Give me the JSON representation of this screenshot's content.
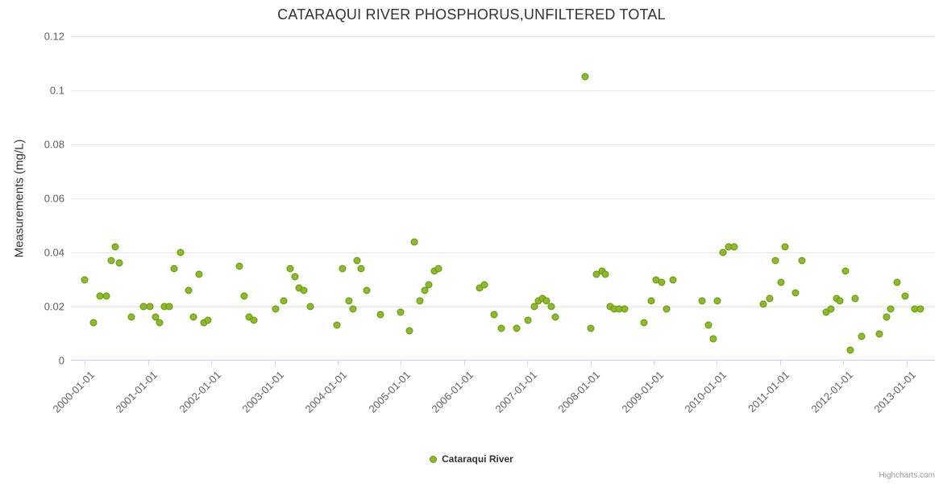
{
  "title": "CATARAQUI RIVER PHOSPHORUS,UNFILTERED TOTAL",
  "legend": {
    "label": "Cataraqui River"
  },
  "credits": {
    "label": "Highcharts.com"
  },
  "colors": {
    "series_fill": "#8bbc21",
    "series_border": "#69901a",
    "grid": "#e6e6e6",
    "axis_line": "#ccd6eb",
    "tick_label": "#606060",
    "title": "#333333"
  },
  "chart_data": {
    "type": "scatter",
    "title": "CATARAQUI RIVER PHOSPHORUS,UNFILTERED TOTAL",
    "xlabel": "",
    "ylabel": "Measurements (mg/L)",
    "ylim": [
      0,
      0.12
    ],
    "yticks": [
      0,
      0.02,
      0.04,
      0.06,
      0.08,
      0.1,
      0.12
    ],
    "ytick_labels": [
      "0",
      "0.02",
      "0.04",
      "0.06",
      "0.08",
      "0.1",
      "0.12"
    ],
    "xlim": [
      1999.78,
      2013.45
    ],
    "xticks": [
      2000,
      2001,
      2002,
      2003,
      2004,
      2005,
      2006,
      2007,
      2008,
      2009,
      2010,
      2011,
      2012,
      2013
    ],
    "xtick_labels": [
      "2000-01-01",
      "2001-01-01",
      "2002-01-01",
      "2003-01-01",
      "2004-01-01",
      "2005-01-01",
      "2006-01-01",
      "2007-01-01",
      "2008-01-01",
      "2009-01-01",
      "2010-01-01",
      "2011-01-01",
      "2012-01-01",
      "2013-01-01"
    ],
    "grid": "horizontal",
    "legend_position": "bottom-center",
    "series": [
      {
        "name": "Cataraqui River",
        "points": [
          [
            2000.0,
            0.03
          ],
          [
            2000.14,
            0.014
          ],
          [
            2000.24,
            0.024
          ],
          [
            2000.34,
            0.024
          ],
          [
            2000.42,
            0.037
          ],
          [
            2000.48,
            0.042
          ],
          [
            2000.55,
            0.036
          ],
          [
            2000.74,
            0.016
          ],
          [
            2000.93,
            0.02
          ],
          [
            2001.03,
            0.02
          ],
          [
            2001.12,
            0.016
          ],
          [
            2001.18,
            0.014
          ],
          [
            2001.26,
            0.02
          ],
          [
            2001.34,
            0.02
          ],
          [
            2001.41,
            0.034
          ],
          [
            2001.52,
            0.04
          ],
          [
            2001.64,
            0.026
          ],
          [
            2001.72,
            0.016
          ],
          [
            2001.81,
            0.032
          ],
          [
            2001.89,
            0.014
          ],
          [
            2001.95,
            0.015
          ],
          [
            2002.45,
            0.035
          ],
          [
            2002.52,
            0.024
          ],
          [
            2002.6,
            0.016
          ],
          [
            2002.68,
            0.015
          ],
          [
            2003.02,
            0.019
          ],
          [
            2003.15,
            0.022
          ],
          [
            2003.25,
            0.034
          ],
          [
            2003.32,
            0.031
          ],
          [
            2003.39,
            0.027
          ],
          [
            2003.46,
            0.026
          ],
          [
            2003.57,
            0.02
          ],
          [
            2003.99,
            0.013
          ],
          [
            2004.08,
            0.034
          ],
          [
            2004.18,
            0.022
          ],
          [
            2004.24,
            0.019
          ],
          [
            2004.31,
            0.037
          ],
          [
            2004.37,
            0.034
          ],
          [
            2004.46,
            0.026
          ],
          [
            2004.68,
            0.017
          ],
          [
            2004.99,
            0.018
          ],
          [
            2005.13,
            0.011
          ],
          [
            2005.21,
            0.044
          ],
          [
            2005.3,
            0.022
          ],
          [
            2005.38,
            0.026
          ],
          [
            2005.44,
            0.028
          ],
          [
            2005.53,
            0.033
          ],
          [
            2005.59,
            0.034
          ],
          [
            2006.25,
            0.027
          ],
          [
            2006.32,
            0.028
          ],
          [
            2006.48,
            0.017
          ],
          [
            2006.59,
            0.012
          ],
          [
            2006.83,
            0.012
          ],
          [
            2007.01,
            0.015
          ],
          [
            2007.11,
            0.02
          ],
          [
            2007.17,
            0.022
          ],
          [
            2007.24,
            0.023
          ],
          [
            2007.3,
            0.022
          ],
          [
            2007.38,
            0.02
          ],
          [
            2007.45,
            0.016
          ],
          [
            2007.92,
            0.105
          ],
          [
            2008.01,
            0.012
          ],
          [
            2008.1,
            0.032
          ],
          [
            2008.18,
            0.033
          ],
          [
            2008.24,
            0.032
          ],
          [
            2008.31,
            0.02
          ],
          [
            2008.38,
            0.019
          ],
          [
            2008.45,
            0.019
          ],
          [
            2008.54,
            0.019
          ],
          [
            2008.85,
            0.014
          ],
          [
            2008.96,
            0.022
          ],
          [
            2009.04,
            0.03
          ],
          [
            2009.13,
            0.029
          ],
          [
            2009.21,
            0.019
          ],
          [
            2009.31,
            0.03
          ],
          [
            2009.77,
            0.022
          ],
          [
            2009.87,
            0.013
          ],
          [
            2009.94,
            0.008
          ],
          [
            2010.01,
            0.022
          ],
          [
            2010.1,
            0.04
          ],
          [
            2010.19,
            0.042
          ],
          [
            2010.27,
            0.042
          ],
          [
            2010.74,
            0.021
          ],
          [
            2010.83,
            0.023
          ],
          [
            2010.92,
            0.037
          ],
          [
            2011.01,
            0.029
          ],
          [
            2011.08,
            0.042
          ],
          [
            2011.25,
            0.025
          ],
          [
            2011.35,
            0.037
          ],
          [
            2011.73,
            0.018
          ],
          [
            2011.8,
            0.019
          ],
          [
            2011.89,
            0.023
          ],
          [
            2011.95,
            0.022
          ],
          [
            2012.04,
            0.033
          ],
          [
            2012.11,
            0.004
          ],
          [
            2012.19,
            0.023
          ],
          [
            2012.29,
            0.009
          ],
          [
            2012.57,
            0.01
          ],
          [
            2012.68,
            0.016
          ],
          [
            2012.75,
            0.019
          ],
          [
            2012.85,
            0.029
          ],
          [
            2012.98,
            0.024
          ],
          [
            2013.13,
            0.019
          ],
          [
            2013.22,
            0.019
          ]
        ]
      }
    ]
  }
}
